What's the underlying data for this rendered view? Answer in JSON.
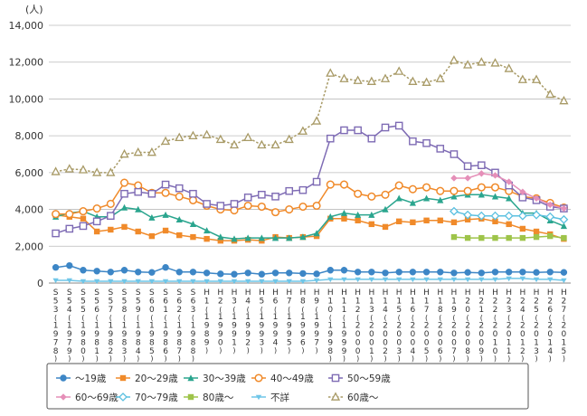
{
  "chart_data": {
    "type": "line",
    "y_unit": "(人)",
    "ylim": [
      0,
      14000
    ],
    "y_ticks": [
      "0",
      "2,000",
      "4,000",
      "6,000",
      "8,000",
      "10,000",
      "12,000",
      "14,000"
    ],
    "y_tick_values": [
      0,
      2000,
      4000,
      6000,
      8000,
      10000,
      12000,
      14000
    ],
    "grid": true,
    "legend_position": "bottom",
    "x_labels": [
      "S53(1978)",
      "S54(1979)",
      "S55(1980)",
      "S56(1981)",
      "S57(1982)",
      "S58(1983)",
      "S59(1984)",
      "S60(1985)",
      "S61(1986)",
      "S62(1987)",
      "S63(1988)",
      "H1(1989)",
      "H2(1990)",
      "H3(1991)",
      "H4(1992)",
      "H5(1993)",
      "H6(1994)",
      "H7(1995)",
      "H8(1996)",
      "H9(1997)",
      "H10(1998)",
      "H11(1999)",
      "H12(2000)",
      "H13(2001)",
      "H14(2002)",
      "H15(2003)",
      "H16(2004)",
      "H17(2005)",
      "H18(2006)",
      "H19(2007)",
      "H20(2008)",
      "H21(2009)",
      "H22(2010)",
      "H23(2011)",
      "H24(2012)",
      "H25(2013)",
      "H26(2014)",
      "H27(2015)"
    ],
    "x_label_top": [
      "S",
      "S",
      "S",
      "S",
      "S",
      "S",
      "S",
      "S",
      "S",
      "S",
      "S",
      "H",
      "H",
      "H",
      "H",
      "H",
      "H",
      "H",
      "H",
      "H",
      "H",
      "H",
      "H",
      "H",
      "H",
      "H",
      "H",
      "H",
      "H",
      "H",
      "H",
      "H",
      "H",
      "H",
      "H",
      "H",
      "H",
      "H"
    ],
    "x_label_mid": [
      "5",
      "5",
      "5",
      "5",
      "5",
      "5",
      "5",
      "6",
      "6",
      "6",
      "6",
      "1",
      "2",
      "3",
      "4",
      "5",
      "6",
      "7",
      "8",
      "9",
      "1",
      "1",
      "1",
      "1",
      "1",
      "1",
      "1",
      "1",
      "1",
      "1",
      "2",
      "2",
      "2",
      "2",
      "2",
      "2",
      "2",
      "2"
    ],
    "x_label_mid2": [
      "3",
      "4",
      "5",
      "6",
      "7",
      "8",
      "9",
      "0",
      "1",
      "2",
      "3",
      "",
      "",
      "",
      "",
      "",
      "",
      "",
      "",
      "",
      "0",
      "1",
      "2",
      "3",
      "4",
      "5",
      "6",
      "7",
      "8",
      "9",
      "0",
      "1",
      "2",
      "3",
      "4",
      "5",
      "6",
      "7"
    ],
    "x_label_year": [
      "1978",
      "1979",
      "1980",
      "1981",
      "1982",
      "1983",
      "1984",
      "1985",
      "1986",
      "1987",
      "1988",
      "1989",
      "1990",
      "1991",
      "1992",
      "1993",
      "1994",
      "1995",
      "1996",
      "1997",
      "1998",
      "1999",
      "2000",
      "2001",
      "2002",
      "2003",
      "2004",
      "2005",
      "2006",
      "2007",
      "2008",
      "2009",
      "2010",
      "2011",
      "2012",
      "2013",
      "2014",
      "2015"
    ],
    "series": [
      {
        "name": "～19歳",
        "color": "#3d86c6",
        "marker": "circle",
        "dashed": false,
        "values": [
          850,
          950,
          700,
          650,
          600,
          700,
          600,
          580,
          850,
          600,
          600,
          550,
          500,
          480,
          550,
          480,
          550,
          550,
          520,
          500,
          700,
          700,
          600,
          600,
          550,
          600,
          600,
          600,
          600,
          550,
          580,
          550,
          600,
          600,
          600,
          580,
          600,
          580
        ]
      },
      {
        "name": "20～29歳",
        "color": "#f08a2a",
        "marker": "square",
        "dashed": false,
        "values": [
          3700,
          3600,
          3500,
          2800,
          2900,
          3050,
          2800,
          2550,
          2850,
          2600,
          2500,
          2400,
          2300,
          2300,
          2350,
          2300,
          2500,
          2450,
          2500,
          2550,
          3500,
          3500,
          3400,
          3200,
          3050,
          3350,
          3300,
          3400,
          3400,
          3300,
          3450,
          3500,
          3350,
          3200,
          2950,
          2800,
          2650,
          2400
        ]
      },
      {
        "name": "30～39歳",
        "color": "#2aa58e",
        "marker": "triangle",
        "dashed": false,
        "values": [
          3600,
          3800,
          3900,
          3600,
          3600,
          4100,
          4000,
          3550,
          3700,
          3450,
          3200,
          2850,
          2500,
          2400,
          2450,
          2450,
          2450,
          2450,
          2500,
          2700,
          3600,
          3800,
          3700,
          3700,
          4000,
          4600,
          4350,
          4600,
          4500,
          4700,
          4800,
          4800,
          4700,
          4600,
          3800,
          3800,
          3400,
          3100
        ]
      },
      {
        "name": "40～49歳",
        "color": "#f08a2a",
        "marker": "circle-open",
        "dashed": false,
        "values": [
          3750,
          3750,
          3900,
          4050,
          4300,
          5450,
          5300,
          4900,
          4900,
          4700,
          4500,
          4200,
          4000,
          3950,
          4200,
          4150,
          3850,
          4000,
          4150,
          4200,
          5350,
          5350,
          4850,
          4700,
          4800,
          5300,
          5100,
          5200,
          5000,
          5000,
          5000,
          5200,
          5200,
          5000,
          4700,
          4600,
          4350,
          4100
        ]
      },
      {
        "name": "50～59歳",
        "color": "#7e6bb4",
        "marker": "square-open",
        "dashed": false,
        "values": [
          2700,
          2950,
          3100,
          3350,
          3650,
          4850,
          4950,
          4850,
          5350,
          5150,
          4850,
          4300,
          4200,
          4300,
          4650,
          4800,
          4700,
          5000,
          5050,
          5500,
          7850,
          8300,
          8300,
          7850,
          8450,
          8550,
          7700,
          7600,
          7300,
          7000,
          6350,
          6400,
          6000,
          5300,
          4650,
          4500,
          4150,
          4050
        ]
      },
      {
        "name": "60～69歳",
        "color": "#e58fb8",
        "marker": "diamond",
        "dashed": false,
        "values": [
          null,
          null,
          null,
          null,
          null,
          null,
          null,
          null,
          null,
          null,
          null,
          null,
          null,
          null,
          null,
          null,
          null,
          null,
          null,
          null,
          null,
          null,
          null,
          null,
          null,
          null,
          null,
          null,
          null,
          5700,
          5700,
          5950,
          5850,
          5500,
          4950,
          4600,
          4250,
          4050
        ]
      },
      {
        "name": "70～79歳",
        "color": "#5bc0e0",
        "marker": "diamond-open",
        "dashed": false,
        "values": [
          null,
          null,
          null,
          null,
          null,
          null,
          null,
          null,
          null,
          null,
          null,
          null,
          null,
          null,
          null,
          null,
          null,
          null,
          null,
          null,
          null,
          null,
          null,
          null,
          null,
          null,
          null,
          null,
          null,
          3900,
          3700,
          3650,
          3650,
          3650,
          3650,
          3700,
          3600,
          3450
        ]
      },
      {
        "name": "80歳～",
        "color": "#9ec44a",
        "marker": "square-x",
        "dashed": false,
        "values": [
          null,
          null,
          null,
          null,
          null,
          null,
          null,
          null,
          null,
          null,
          null,
          null,
          null,
          null,
          null,
          null,
          null,
          null,
          null,
          null,
          null,
          null,
          null,
          null,
          null,
          null,
          null,
          null,
          null,
          2500,
          2450,
          2450,
          2450,
          2450,
          2450,
          2500,
          2550,
          2450
        ]
      },
      {
        "name": "不詳",
        "color": "#6fc6e8",
        "marker": "triangle-down",
        "dashed": false,
        "values": [
          150,
          150,
          100,
          100,
          100,
          100,
          100,
          100,
          100,
          100,
          100,
          100,
          100,
          100,
          100,
          100,
          100,
          100,
          100,
          150,
          200,
          200,
          200,
          200,
          200,
          200,
          200,
          200,
          200,
          200,
          200,
          200,
          200,
          250,
          250,
          200,
          200,
          150
        ]
      },
      {
        "name": "60歳～",
        "color": "#a89a66",
        "marker": "triangle-open",
        "dashed": true,
        "values": [
          6050,
          6200,
          6150,
          6000,
          6000,
          7000,
          7100,
          7100,
          7700,
          7900,
          8000,
          8050,
          7800,
          7500,
          7900,
          7500,
          7500,
          7800,
          8250,
          8800,
          11400,
          11100,
          11000,
          10950,
          11100,
          11500,
          10950,
          10900,
          11100,
          12100,
          11850,
          12000,
          11950,
          11650,
          11050,
          11050,
          10250,
          9900
        ]
      }
    ]
  }
}
